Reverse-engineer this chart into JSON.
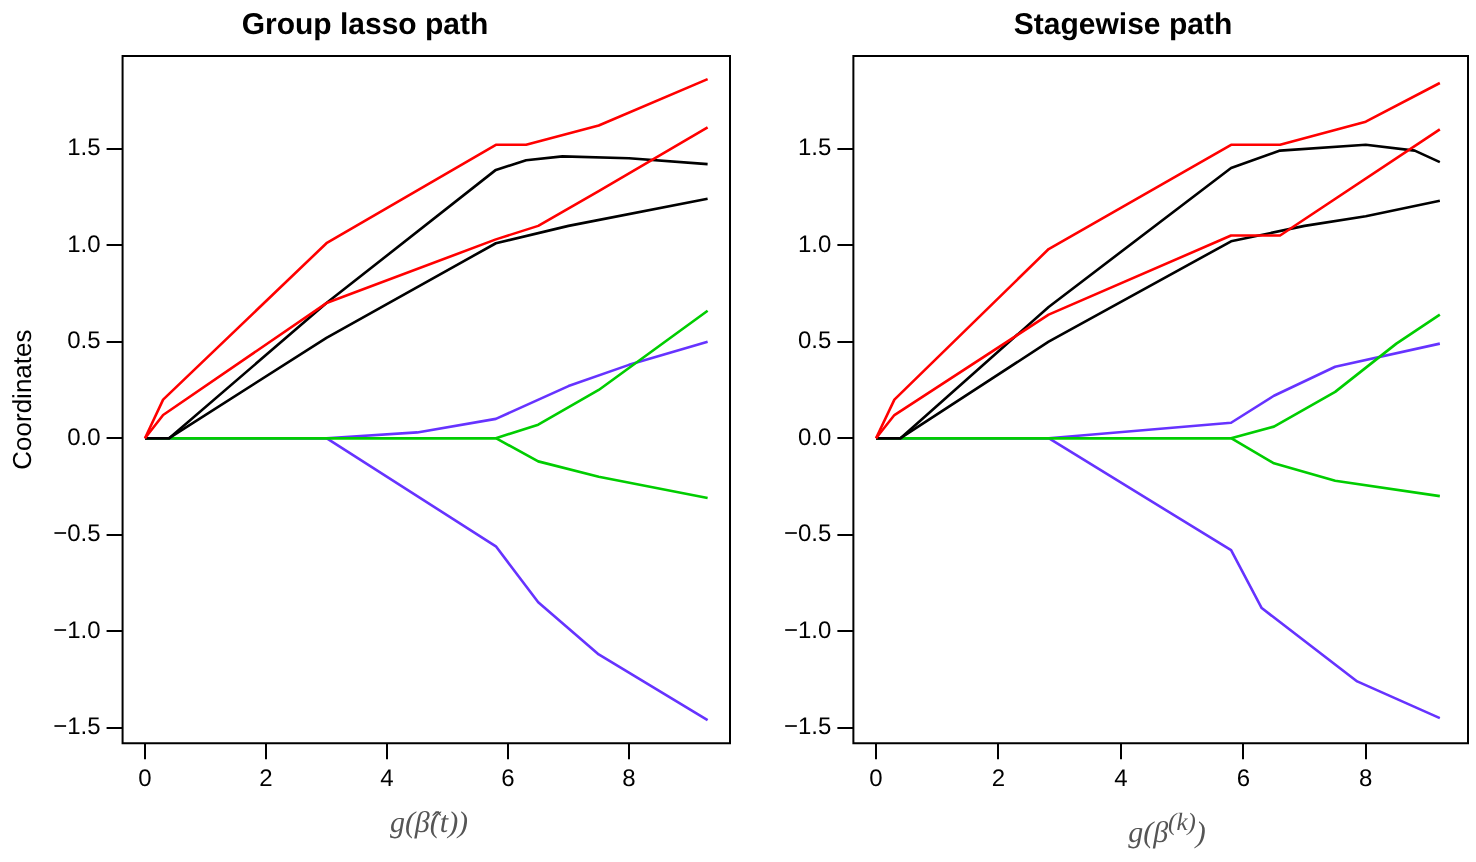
{
  "chart_data": [
    {
      "type": "line",
      "title": "Group lasso path",
      "xlabel": "g(β̂(t))",
      "ylabel": "Coordinates",
      "xlim": [
        -0.37,
        9.67
      ],
      "ylim": [
        -1.58,
        1.98
      ],
      "xticks": [
        0,
        2,
        4,
        6,
        8
      ],
      "yticks": [
        {
          "value": -1.5,
          "label": "−1.5"
        },
        {
          "value": -1,
          "label": "−1.0"
        },
        {
          "value": -0.5,
          "label": "−0.5"
        },
        {
          "value": 0,
          "label": "0.0"
        },
        {
          "value": 0.5,
          "label": "0.5"
        },
        {
          "value": 1,
          "label": "1.0"
        },
        {
          "value": 1.5,
          "label": "1.5"
        }
      ],
      "grid": false,
      "legend": false,
      "marker": "none",
      "line_style": "solid",
      "series": [
        {
          "color": "#ff0000",
          "x": [
            0,
            0.3,
            3,
            5.8,
            6.3,
            7.5,
            9.3
          ],
          "values": [
            0,
            0.2,
            1.01,
            1.52,
            1.52,
            1.62,
            1.86
          ]
        },
        {
          "color": "#ff0000",
          "x": [
            0,
            0.3,
            3,
            5.8,
            6.5,
            7.5,
            9.3
          ],
          "values": [
            0,
            0.12,
            0.7,
            1.03,
            1.1,
            1.28,
            1.61
          ]
        },
        {
          "color": "#000000",
          "x": [
            0,
            0.4,
            3,
            5.8,
            6.3,
            6.9,
            8,
            9.3
          ],
          "values": [
            0,
            0,
            0.7,
            1.39,
            1.44,
            1.46,
            1.45,
            1.42
          ]
        },
        {
          "color": "#000000",
          "x": [
            0,
            0.4,
            3,
            5.8,
            7,
            9.3
          ],
          "values": [
            0,
            0,
            0.52,
            1.01,
            1.1,
            1.24
          ]
        },
        {
          "color": "#00cd00",
          "x": [
            0,
            5.8,
            6.5,
            7.5,
            9.3
          ],
          "values": [
            0,
            0,
            0.07,
            0.25,
            0.66
          ]
        },
        {
          "color": "#00cd00",
          "x": [
            0,
            5.8,
            6.5,
            7.5,
            9.3
          ],
          "values": [
            0,
            0,
            -0.12,
            -0.2,
            -0.31
          ]
        },
        {
          "color": "#6633ff",
          "x": [
            0,
            3,
            4.5,
            5.8,
            7,
            8,
            9.3
          ],
          "values": [
            0,
            0,
            0.03,
            0.1,
            0.27,
            0.38,
            0.5
          ]
        },
        {
          "color": "#6633ff",
          "x": [
            0,
            3,
            5.8,
            6.5,
            7.5,
            9.3
          ],
          "values": [
            0,
            0,
            -0.56,
            -0.85,
            -1.12,
            -1.46
          ]
        }
      ]
    },
    {
      "type": "line",
      "title": "Stagewise path",
      "xlabel": "g(β$^{(k)}$)",
      "xlim": [
        -0.37,
        9.67
      ],
      "ylim": [
        -1.58,
        1.98
      ],
      "xticks": [
        0,
        2,
        4,
        6,
        8
      ],
      "yticks": [
        {
          "value": -1.5,
          "label": "−1.5"
        },
        {
          "value": -1,
          "label": "−1.0"
        },
        {
          "value": -0.5,
          "label": "−0.5"
        },
        {
          "value": 0,
          "label": "0.0"
        },
        {
          "value": 0.5,
          "label": "0.5"
        },
        {
          "value": 1,
          "label": "1.0"
        },
        {
          "value": 1.5,
          "label": "1.5"
        }
      ],
      "grid": false,
      "legend": false,
      "marker": "none",
      "line_style": "solid",
      "series": [
        {
          "color": "#ff0000",
          "x": [
            0,
            0.3,
            2.82,
            5.8,
            6.6,
            8,
            9.21
          ],
          "values": [
            0,
            0.2,
            0.98,
            1.52,
            1.52,
            1.64,
            1.84
          ]
        },
        {
          "color": "#ff0000",
          "x": [
            0,
            0.3,
            2.82,
            5.8,
            6.6,
            9.21
          ],
          "values": [
            0,
            0.12,
            0.64,
            1.05,
            1.05,
            1.6
          ]
        },
        {
          "color": "#000000",
          "x": [
            0,
            0.4,
            2.82,
            5.8,
            6.6,
            8,
            8.8,
            9.21
          ],
          "values": [
            0,
            0,
            0.68,
            1.4,
            1.49,
            1.52,
            1.49,
            1.43
          ]
        },
        {
          "color": "#000000",
          "x": [
            0,
            0.4,
            2.82,
            5.8,
            7,
            8,
            9.21
          ],
          "values": [
            0,
            0,
            0.5,
            1.02,
            1.1,
            1.15,
            1.23
          ]
        },
        {
          "color": "#00cd00",
          "x": [
            0,
            5.8,
            6.5,
            7.5,
            8.5,
            9.21
          ],
          "values": [
            0,
            0,
            0.06,
            0.24,
            0.49,
            0.64
          ]
        },
        {
          "color": "#00cd00",
          "x": [
            0,
            5.8,
            6.5,
            7.5,
            9.21
          ],
          "values": [
            0,
            0,
            -0.13,
            -0.22,
            -0.3
          ]
        },
        {
          "color": "#6633ff",
          "x": [
            0,
            2.82,
            5.8,
            6.5,
            7.5,
            9.21
          ],
          "values": [
            0,
            0,
            0.08,
            0.22,
            0.37,
            0.49
          ]
        },
        {
          "color": "#6633ff",
          "x": [
            0,
            2.82,
            5.8,
            6.3,
            7.86,
            9.21
          ],
          "values": [
            0,
            0,
            -0.58,
            -0.88,
            -1.26,
            -1.45
          ]
        }
      ]
    }
  ]
}
